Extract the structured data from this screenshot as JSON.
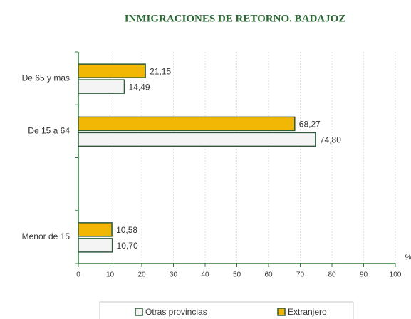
{
  "chart_data": {
    "type": "hbar",
    "title": "INMIGRACIONES DE RETORNO. BADAJOZ",
    "categories": [
      "De 65 y más",
      "De 15 a 64",
      null,
      "Menor de 15"
    ],
    "series": [
      {
        "name": "Extranjero",
        "color": "#f2b705",
        "values": [
          21.15,
          68.27,
          null,
          10.58
        ],
        "value_labels": [
          "21,15",
          "68,27",
          null,
          "10,58"
        ]
      },
      {
        "name": "Otras provincias",
        "color": "#f4f4f4",
        "values": [
          14.49,
          74.8,
          null,
          10.7
        ],
        "value_labels": [
          "14,49",
          "74,80",
          null,
          "10,70"
        ]
      }
    ],
    "xlabel": "%",
    "xlim": [
      0,
      100
    ],
    "xticks": [
      0,
      10,
      20,
      30,
      40,
      50,
      60,
      70,
      80,
      90,
      100
    ],
    "grid": true
  }
}
